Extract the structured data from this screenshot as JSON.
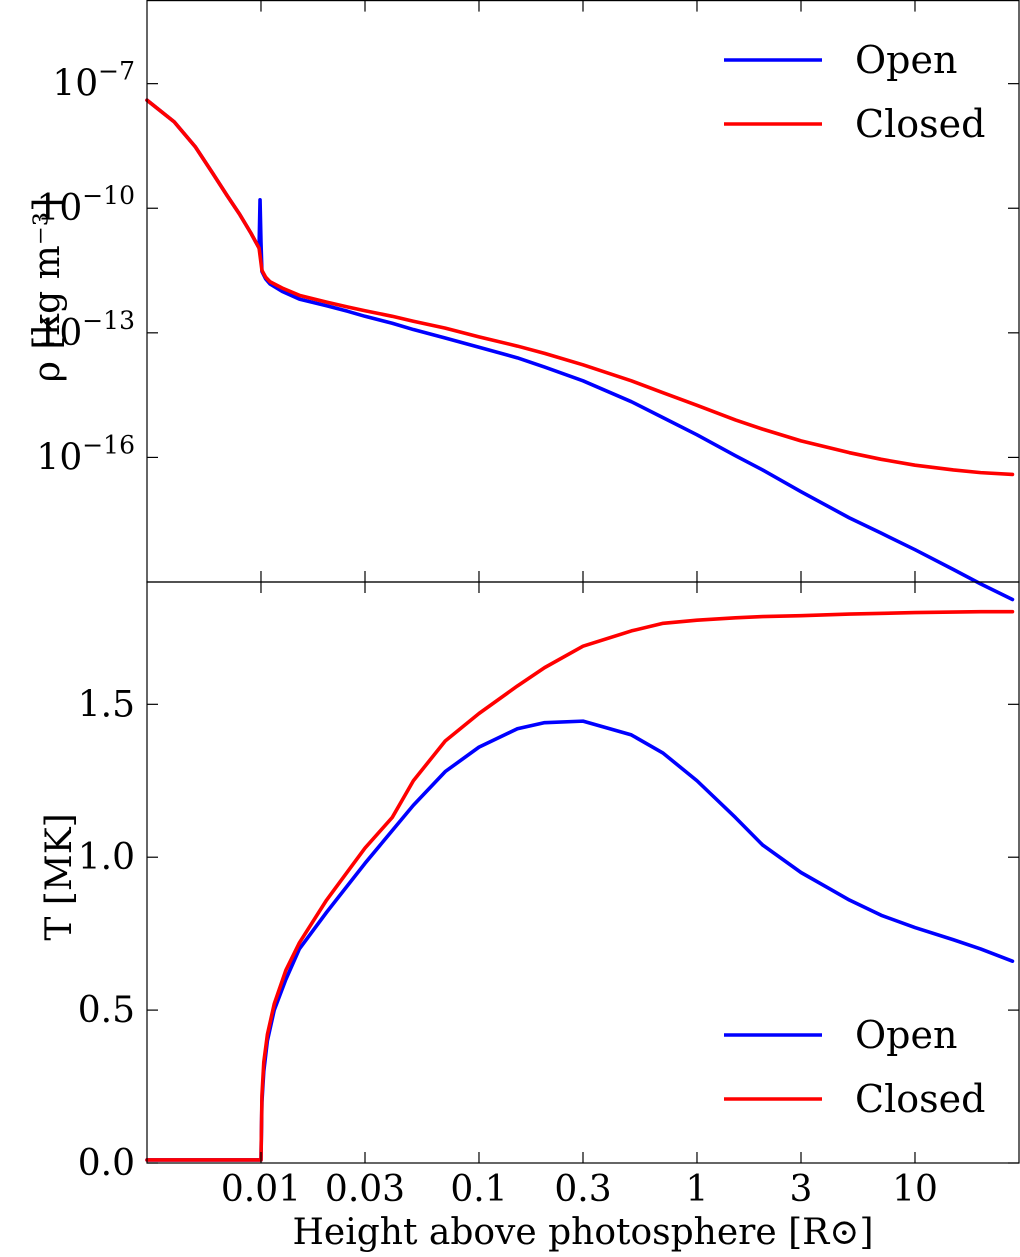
{
  "chart_data": [
    {
      "type": "line",
      "panel": "top",
      "title": "",
      "xlabel": "",
      "ylabel": "ρ [kg m⁻³]",
      "xscale": "log",
      "yscale": "log",
      "xlim": [
        0.003,
        30
      ],
      "ylim": [
        1e-19,
        1e-05
      ],
      "x_ticks": [
        0.01,
        0.03,
        0.1,
        0.3,
        1,
        3,
        10
      ],
      "y_ticks": [
        {
          "value": 1e-07,
          "base": "10",
          "exp": "−7"
        },
        {
          "value": 1e-10,
          "base": "10",
          "exp": "−10"
        },
        {
          "value": 1e-13,
          "base": "10",
          "exp": "−13"
        },
        {
          "value": 1e-16,
          "base": "10",
          "exp": "−16"
        }
      ],
      "legend": {
        "position": "top-right",
        "entries": [
          "Open",
          "Closed"
        ]
      },
      "series": [
        {
          "name": "Open",
          "color": "#0000ff",
          "points": [
            [
              0.003,
              4e-08
            ],
            [
              0.004,
              1.2e-08
            ],
            [
              0.005,
              3e-09
            ],
            [
              0.006,
              7e-10
            ],
            [
              0.007,
              2e-10
            ],
            [
              0.008,
              7e-11
            ],
            [
              0.009,
              2.5e-11
            ],
            [
              0.0098,
              1.1e-11
            ],
            [
              0.0099,
              1.6e-10
            ],
            [
              0.01,
              1.5e-11
            ],
            [
              0.0101,
              3e-12
            ],
            [
              0.0105,
              2e-12
            ],
            [
              0.011,
              1.5e-12
            ],
            [
              0.0125,
              1e-12
            ],
            [
              0.015,
              6.5e-13
            ],
            [
              0.02,
              4.5e-13
            ],
            [
              0.025,
              3.3e-13
            ],
            [
              0.03,
              2.5e-13
            ],
            [
              0.04,
              1.7e-13
            ],
            [
              0.05,
              1.2e-13
            ],
            [
              0.07,
              7.5e-14
            ],
            [
              0.1,
              4.5e-14
            ],
            [
              0.15,
              2.5e-14
            ],
            [
              0.2,
              1.5e-14
            ],
            [
              0.3,
              7e-15
            ],
            [
              0.5,
              2.2e-15
            ],
            [
              0.7,
              9e-16
            ],
            [
              1,
              3.5e-16
            ],
            [
              1.5,
              1.1e-16
            ],
            [
              2,
              5e-17
            ],
            [
              3,
              1.5e-17
            ],
            [
              5,
              3.5e-18
            ],
            [
              7,
              1.5e-18
            ],
            [
              10,
              6e-19
            ],
            [
              15,
              2e-19
            ],
            [
              20,
              9e-20
            ],
            [
              28,
              3.8e-20
            ]
          ]
        },
        {
          "name": "Closed",
          "color": "#ff0000",
          "points": [
            [
              0.003,
              4e-08
            ],
            [
              0.004,
              1.2e-08
            ],
            [
              0.005,
              3e-09
            ],
            [
              0.006,
              7e-10
            ],
            [
              0.007,
              2e-10
            ],
            [
              0.008,
              7e-11
            ],
            [
              0.009,
              2.5e-11
            ],
            [
              0.0098,
              1.1e-11
            ],
            [
              0.0101,
              3.2e-12
            ],
            [
              0.0105,
              2.2e-12
            ],
            [
              0.011,
              1.7e-12
            ],
            [
              0.0125,
              1.2e-12
            ],
            [
              0.015,
              8e-13
            ],
            [
              0.02,
              5.5e-13
            ],
            [
              0.025,
              4.2e-13
            ],
            [
              0.03,
              3.4e-13
            ],
            [
              0.04,
              2.5e-13
            ],
            [
              0.05,
              1.9e-13
            ],
            [
              0.07,
              1.3e-13
            ],
            [
              0.1,
              8e-14
            ],
            [
              0.15,
              4.8e-14
            ],
            [
              0.2,
              3.2e-14
            ],
            [
              0.3,
              1.7e-14
            ],
            [
              0.5,
              7e-15
            ],
            [
              0.7,
              3.6e-15
            ],
            [
              1,
              1.8e-15
            ],
            [
              1.5,
              8e-16
            ],
            [
              2,
              4.8e-16
            ],
            [
              3,
              2.5e-16
            ],
            [
              5,
              1.3e-16
            ],
            [
              7,
              9e-17
            ],
            [
              10,
              6.5e-17
            ],
            [
              15,
              5e-17
            ],
            [
              20,
              4.3e-17
            ],
            [
              28,
              3.9e-17
            ]
          ]
        }
      ]
    },
    {
      "type": "line",
      "panel": "bottom",
      "title": "",
      "xlabel": "Height above photosphere [R⊙]",
      "ylabel": "T [MK]",
      "xscale": "log",
      "yscale": "linear",
      "xlim": [
        0.003,
        30
      ],
      "ylim": [
        0.0,
        1.9
      ],
      "x_ticks": [
        {
          "value": 0.01,
          "label": "0.01"
        },
        {
          "value": 0.03,
          "label": "0.03"
        },
        {
          "value": 0.1,
          "label": "0.1"
        },
        {
          "value": 0.3,
          "label": "0.3"
        },
        {
          "value": 1,
          "label": "1"
        },
        {
          "value": 3,
          "label": "3"
        },
        {
          "value": 10,
          "label": "10"
        }
      ],
      "y_ticks": [
        {
          "value": 0.0,
          "label": "0.0"
        },
        {
          "value": 0.5,
          "label": "0.5"
        },
        {
          "value": 1.0,
          "label": "1.0"
        },
        {
          "value": 1.5,
          "label": "1.5"
        }
      ],
      "legend": {
        "position": "bottom-right",
        "entries": [
          "Open",
          "Closed"
        ]
      },
      "series": [
        {
          "name": "Open",
          "color": "#0000ff",
          "points": [
            [
              0.003,
              0.01
            ],
            [
              0.0099,
              0.01
            ],
            [
              0.01,
              0.01
            ],
            [
              0.0101,
              0.2
            ],
            [
              0.0103,
              0.3
            ],
            [
              0.0107,
              0.4
            ],
            [
              0.0115,
              0.5
            ],
            [
              0.013,
              0.6
            ],
            [
              0.015,
              0.7
            ],
            [
              0.02,
              0.82
            ],
            [
              0.03,
              0.98
            ],
            [
              0.05,
              1.17
            ],
            [
              0.07,
              1.28
            ],
            [
              0.1,
              1.36
            ],
            [
              0.15,
              1.42
            ],
            [
              0.2,
              1.44
            ],
            [
              0.3,
              1.445
            ],
            [
              0.5,
              1.4
            ],
            [
              0.7,
              1.34
            ],
            [
              1,
              1.25
            ],
            [
              1.5,
              1.13
            ],
            [
              2,
              1.04
            ],
            [
              3,
              0.95
            ],
            [
              5,
              0.86
            ],
            [
              7,
              0.81
            ],
            [
              10,
              0.77
            ],
            [
              15,
              0.73
            ],
            [
              20,
              0.7
            ],
            [
              28,
              0.66
            ]
          ]
        },
        {
          "name": "Closed",
          "color": "#ff0000",
          "points": [
            [
              0.003,
              0.01
            ],
            [
              0.0099,
              0.01
            ],
            [
              0.01,
              0.01
            ],
            [
              0.0101,
              0.22
            ],
            [
              0.0103,
              0.33
            ],
            [
              0.0107,
              0.42
            ],
            [
              0.0115,
              0.52
            ],
            [
              0.013,
              0.63
            ],
            [
              0.015,
              0.72
            ],
            [
              0.02,
              0.86
            ],
            [
              0.03,
              1.03
            ],
            [
              0.04,
              1.13
            ],
            [
              0.05,
              1.25
            ],
            [
              0.07,
              1.38
            ],
            [
              0.1,
              1.47
            ],
            [
              0.15,
              1.56
            ],
            [
              0.2,
              1.62
            ],
            [
              0.3,
              1.69
            ],
            [
              0.5,
              1.74
            ],
            [
              0.7,
              1.765
            ],
            [
              1,
              1.775
            ],
            [
              1.5,
              1.783
            ],
            [
              2,
              1.787
            ],
            [
              3,
              1.79
            ],
            [
              5,
              1.795
            ],
            [
              10,
              1.8
            ],
            [
              20,
              1.803
            ],
            [
              28,
              1.803
            ]
          ]
        }
      ]
    }
  ]
}
